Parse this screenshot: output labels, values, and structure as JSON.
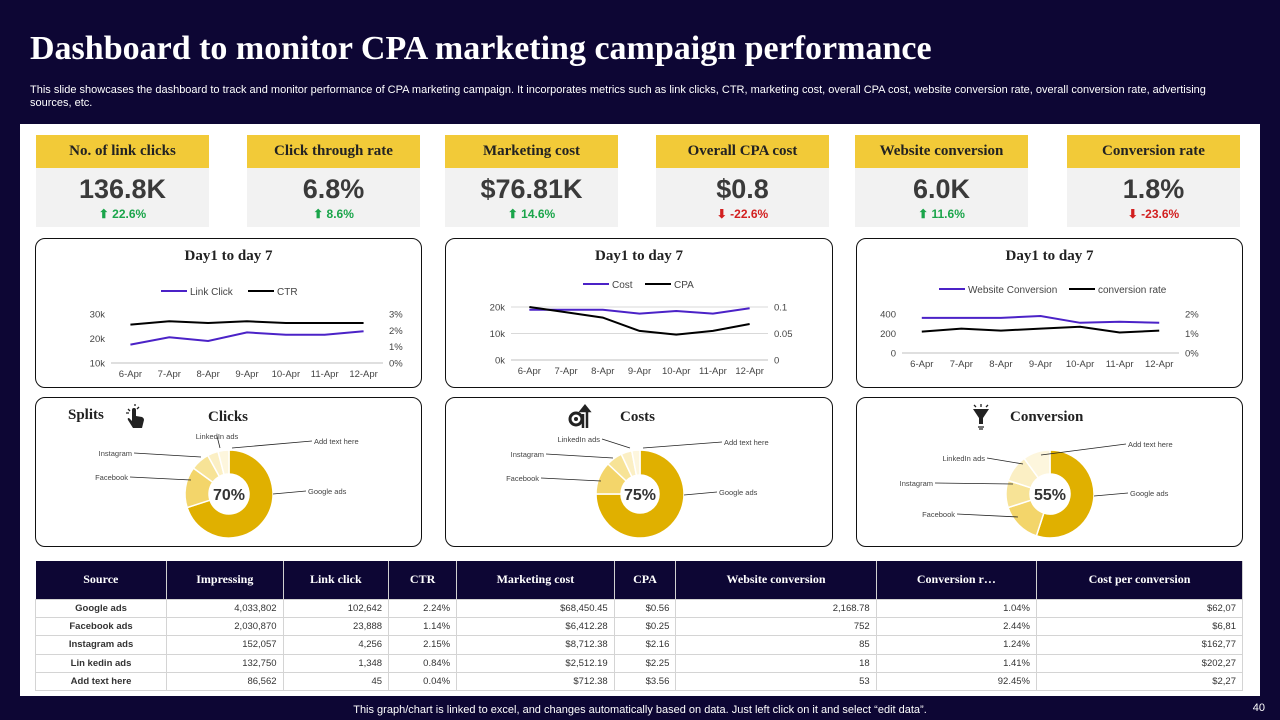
{
  "title": "Dashboard to monitor CPA marketing campaign performance",
  "subtitle": "This slide showcases the dashboard to track and monitor performance of CPA marketing campaign. It incorporates metrics such as link clicks, CTR, marketing cost, overall CPA cost, website conversion rate, overall conversion rate, advertising sources, etc.",
  "kpis": [
    {
      "label": "No. of link clicks",
      "value": "136.8K",
      "change": "⬆ 22.6%",
      "dir": "up"
    },
    {
      "label": "Click through rate",
      "value": "6.8%",
      "change": "⬆  8.6%",
      "dir": "up"
    },
    {
      "label": "Marketing cost",
      "value": "$76.81K",
      "change": "⬆ 14.6%",
      "dir": "up"
    },
    {
      "label": "Overall CPA cost",
      "value": "$0.8",
      "change": "⬇ -22.6%",
      "dir": "down"
    },
    {
      "label": "Website conversion",
      "value": "6.0K",
      "change": "⬆ 11.6%",
      "dir": "up"
    },
    {
      "label": "Conversion rate",
      "value": "1.8%",
      "change": "⬇ -23.6%",
      "dir": "down"
    }
  ],
  "colors": {
    "accent_yellow": "#f2ca38",
    "donut_gold": "#e0b000",
    "series_purple": "#4b22c7",
    "series_black": "#000000",
    "navy_bg": "#0d0634",
    "up_green": "#1aa54a",
    "down_red": "#d21f1f"
  },
  "chart_data": [
    {
      "type": "line",
      "title": "Day1 to day 7",
      "x": [
        "6-Apr",
        "7-Apr",
        "8-Apr",
        "9-Apr",
        "10-Apr",
        "11-Apr",
        "12-Apr"
      ],
      "series": [
        {
          "name": "Link Click",
          "axis": "left",
          "values": [
            17500,
            20500,
            19000,
            22500,
            21500,
            21500,
            23000
          ]
        },
        {
          "name": "CTR",
          "axis": "right",
          "values": [
            0.0235,
            0.0255,
            0.0245,
            0.0255,
            0.0245,
            0.0245,
            0.0245
          ]
        }
      ],
      "yticks_left": [
        "10k",
        "20k",
        "30k"
      ],
      "ylim_left": [
        10000,
        30000
      ],
      "yticks_right": [
        "0%",
        "1%",
        "2%",
        "3%"
      ],
      "ylim_right": [
        0,
        0.03
      ],
      "legend": "top"
    },
    {
      "type": "line",
      "title": "Day1 to day 7",
      "x": [
        "6-Apr",
        "7-Apr",
        "8-Apr",
        "9-Apr",
        "10-Apr",
        "11-Apr",
        "12-Apr"
      ],
      "series": [
        {
          "name": "Cost",
          "axis": "left",
          "values": [
            19000,
            19000,
            19000,
            17500,
            18500,
            17500,
            19500
          ]
        },
        {
          "name": "CPA",
          "axis": "right",
          "values": [
            0.1,
            0.09,
            0.08,
            0.055,
            0.048,
            0.055,
            0.068
          ]
        }
      ],
      "yticks_left": [
        "0k",
        "10k",
        "20k"
      ],
      "ylim_left": [
        0,
        20000
      ],
      "yticks_right": [
        "0",
        "0.05",
        "0.1"
      ],
      "ylim_right": [
        0,
        0.1
      ],
      "legend": "top"
    },
    {
      "type": "line",
      "title": "Day1 to day 7",
      "x": [
        "6-Apr",
        "7-Apr",
        "8-Apr",
        "9-Apr",
        "10-Apr",
        "11-Apr",
        "12-Apr"
      ],
      "series": [
        {
          "name": "Website Conversion",
          "axis": "left",
          "values": [
            360,
            360,
            360,
            380,
            310,
            320,
            310
          ]
        },
        {
          "name": "conversion rate",
          "axis": "right",
          "values": [
            0.011,
            0.0125,
            0.0115,
            0.0125,
            0.0135,
            0.0105,
            0.0115
          ]
        }
      ],
      "yticks_left": [
        "0",
        "200",
        "400"
      ],
      "ylim_left": [
        0,
        400
      ],
      "yticks_right": [
        "0%",
        "1%",
        "2%"
      ],
      "ylim_right": [
        0,
        0.02
      ],
      "legend": "top"
    },
    {
      "type": "pie",
      "title": "Clicks",
      "center_label": "70%",
      "slices": [
        {
          "label": "Google ads",
          "value": 70
        },
        {
          "label": "Facebook",
          "value": 15
        },
        {
          "label": "Instagram",
          "value": 7
        },
        {
          "label": "LinkedIn ads",
          "value": 4
        },
        {
          "label": "Add text here",
          "value": 4
        }
      ]
    },
    {
      "type": "pie",
      "title": "Costs",
      "center_label": "75%",
      "slices": [
        {
          "label": "Google ads",
          "value": 75
        },
        {
          "label": "Facebook",
          "value": 12
        },
        {
          "label": "Instagram",
          "value": 6
        },
        {
          "label": "LinkedIn ads",
          "value": 4
        },
        {
          "label": "Add text here",
          "value": 3
        }
      ]
    },
    {
      "type": "pie",
      "title": "Conversion",
      "center_label": "55%",
      "slices": [
        {
          "label": "Google ads",
          "value": 55
        },
        {
          "label": "Facebook",
          "value": 15
        },
        {
          "label": "Instagram",
          "value": 10
        },
        {
          "label": "LinkedIn ads",
          "value": 10
        },
        {
          "label": "Add text here",
          "value": 10
        }
      ]
    }
  ],
  "splits_label": "Splits",
  "table": {
    "headers": [
      "Source",
      "Impressing",
      "Link click",
      "CTR",
      "Marketing cost",
      "CPA",
      "Website conversion",
      "Conversion r…",
      "Cost per conversion"
    ],
    "rows": [
      [
        "Google ads",
        "4,033,802",
        "102,642",
        "2.24%",
        "$68,450.45",
        "$0.56",
        "2,168.78",
        "1.04%",
        "$62,07"
      ],
      [
        "Facebook ads",
        "2,030,870",
        "23,888",
        "1.14%",
        "$6,412.28",
        "$0.25",
        "752",
        "2.44%",
        "$6,81"
      ],
      [
        "Instagram ads",
        "152,057",
        "4,256",
        "2.15%",
        "$8,712.38",
        "$2.16",
        "85",
        "1.24%",
        "$162,77"
      ],
      [
        "Lin kedin ads",
        "132,750",
        "1,348",
        "0.84%",
        "$2,512.19",
        "$2.25",
        "18",
        "1.41%",
        "$202,27"
      ],
      [
        "Add text here",
        "86,562",
        "45",
        "0.04%",
        "$712.38",
        "$3.56",
        "53",
        "92.45%",
        "$2,27"
      ]
    ]
  },
  "footer": "This graph/chart is linked to excel, and changes automatically based on data. Just left click on it and select “edit data”.",
  "page_number": "40"
}
